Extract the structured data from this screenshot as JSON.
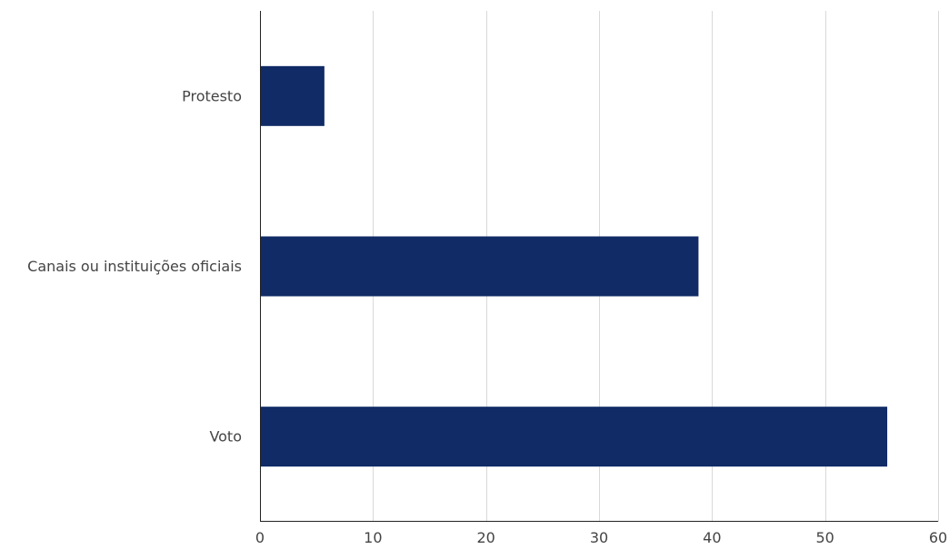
{
  "chart_data": {
    "type": "bar",
    "orientation": "horizontal",
    "categories": [
      "Protesto",
      "Canais ou instituições oficiais",
      "Voto"
    ],
    "values": [
      5.7,
      38.8,
      55.5
    ],
    "xlim": [
      0,
      60
    ],
    "xticks": [
      "0",
      "10",
      "20",
      "30",
      "40",
      "50",
      "60"
    ],
    "grid": true,
    "title": "",
    "xlabel": "",
    "ylabel": "",
    "bar_color": "#112b66"
  }
}
